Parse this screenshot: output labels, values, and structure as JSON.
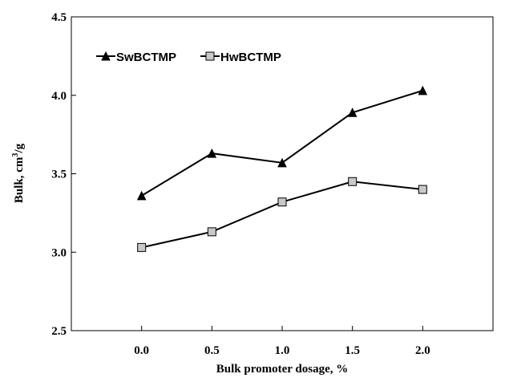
{
  "chart_data": {
    "type": "line",
    "title": "",
    "xlabel": "Bulk promoter dosage, %",
    "ylabel_main": "Bulk, cm",
    "ylabel_sup": "3",
    "ylabel_tail": "/g",
    "x": [
      0.0,
      0.5,
      1.0,
      1.5,
      2.0
    ],
    "x_tick_labels": [
      "0.0",
      "0.5",
      "1.0",
      "1.5",
      "2.0"
    ],
    "y_tick_labels": [
      "2.5",
      "3.0",
      "3.5",
      "4.0",
      "4.5"
    ],
    "y_ticks": [
      2.5,
      3.0,
      3.5,
      4.0,
      4.5
    ],
    "xlim": [
      -0.5,
      2.5
    ],
    "ylim": [
      2.5,
      4.5
    ],
    "grid": false,
    "legend_position": "top-left",
    "series": [
      {
        "name": "SwBCTMP",
        "marker": "triangle",
        "color": "#000000",
        "marker_fill": "#000000",
        "values": [
          3.36,
          3.63,
          3.57,
          3.89,
          4.03
        ]
      },
      {
        "name": "HwBCTMP",
        "marker": "square",
        "color": "#000000",
        "marker_fill": "#c8c8c8",
        "values": [
          3.03,
          3.13,
          3.32,
          3.45,
          3.4
        ]
      }
    ]
  }
}
